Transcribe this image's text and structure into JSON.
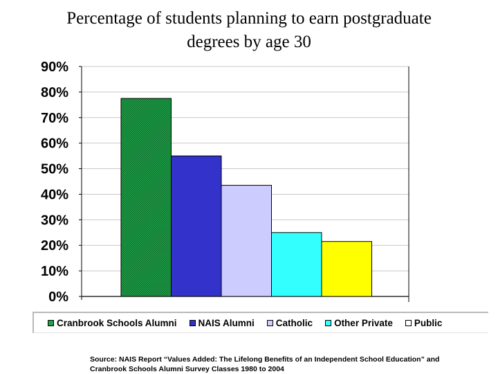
{
  "title": {
    "line1": "Percentage of students planning to earn postgraduate",
    "line2": "degrees by age 30"
  },
  "chart_data": {
    "type": "bar",
    "categories": [
      "Cranbrook Schools Alumni",
      "NAIS Alumni",
      "Catholic",
      "Other Private",
      "Public"
    ],
    "values": [
      77.5,
      55,
      43.5,
      25,
      21.5
    ],
    "colors": [
      "#1fa34a",
      "#3333cc",
      "#ccccff",
      "#33ffff",
      "#ffff00"
    ],
    "ylim": [
      0,
      90
    ],
    "yticks": [
      0,
      10,
      20,
      30,
      40,
      50,
      60,
      70,
      80,
      90
    ],
    "ytick_labels": [
      "0%",
      "10%",
      "20%",
      "30%",
      "40%",
      "50%",
      "60%",
      "70%",
      "80%",
      "90%"
    ],
    "grid": true,
    "legend_placement": "bottom"
  },
  "legend": {
    "items": [
      "Cranbrook Schools Alumni",
      "NAIS Alumni",
      "Catholic",
      "Other Private",
      "Public"
    ]
  },
  "source": {
    "line1": "Source: NAIS Report “Values Added: The Lifelong Benefits of an Independent School Education” and",
    "line2": "Cranbrook Schools Alumni Survey Classes 1980 to 2004"
  }
}
